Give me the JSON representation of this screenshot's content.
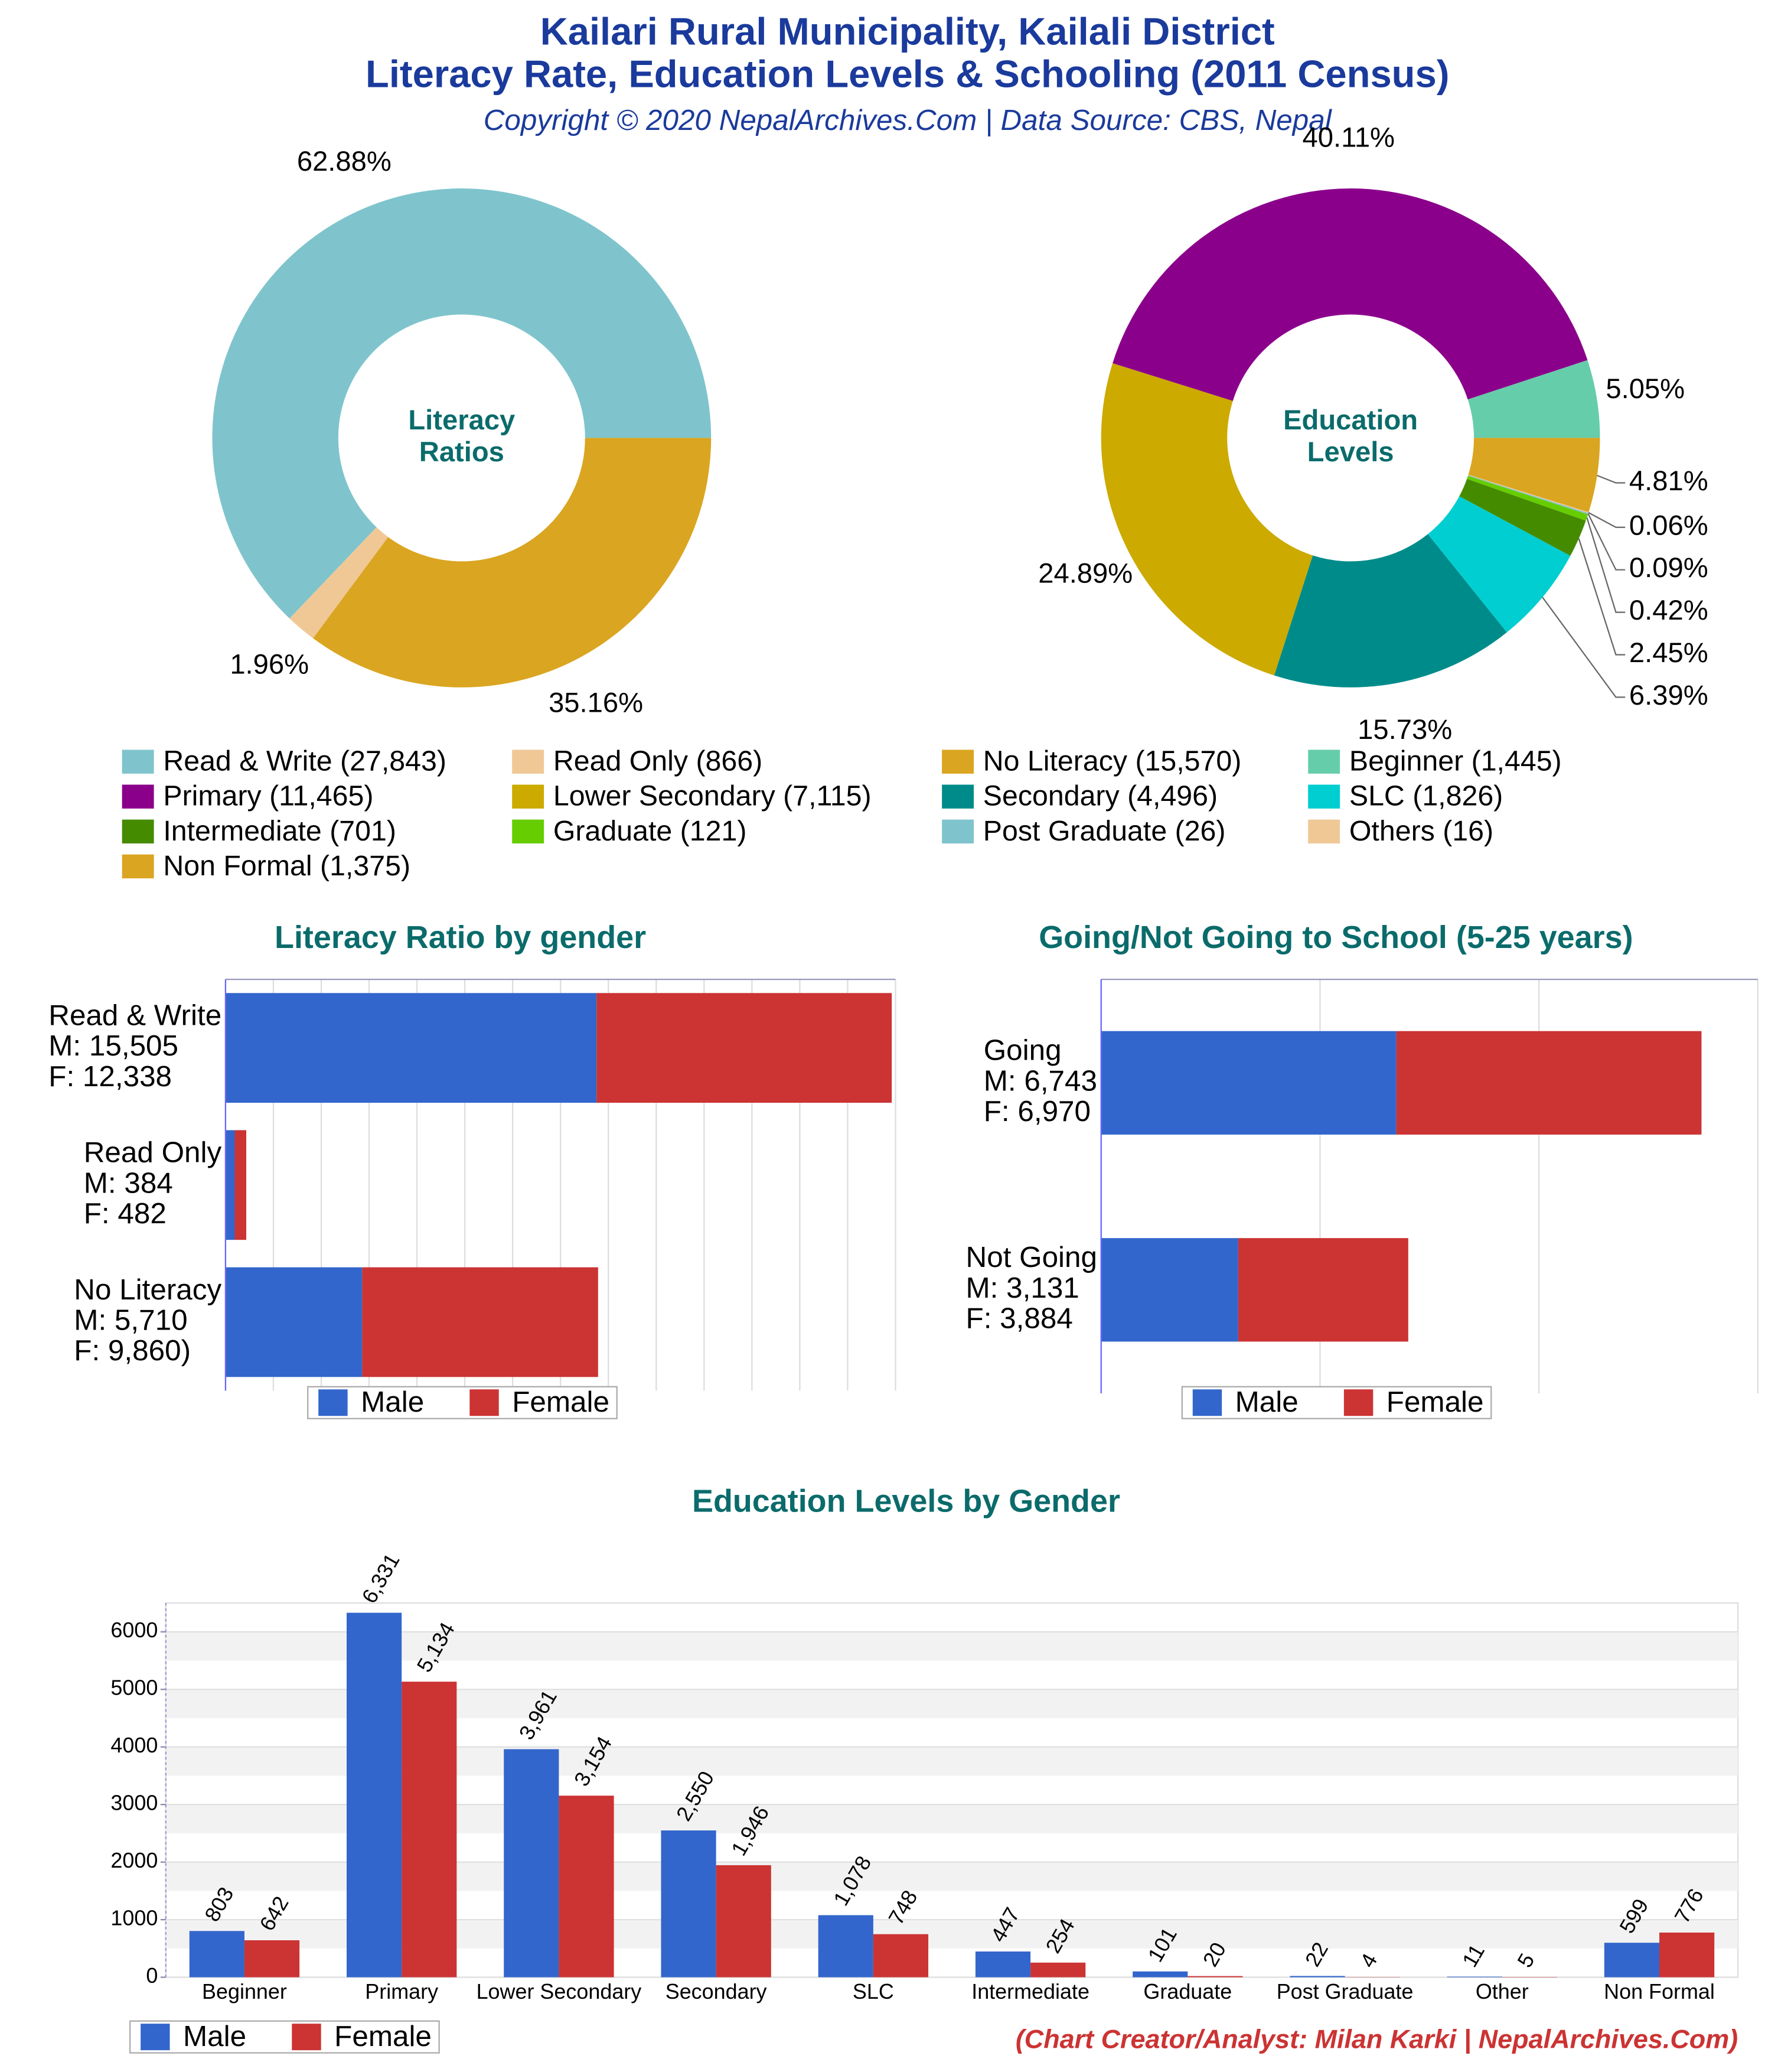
{
  "header": {
    "title_lines": [
      "Kailari Rural Municipality, Kailali District",
      "Literacy Rate, Education Levels & Schooling (2011 Census)"
    ],
    "subtitle": "Copyright © 2020 NepalArchives.Com | Data Source: CBS, Nepal"
  },
  "footer": "(Chart Creator/Analyst: Milan Karki | NepalArchives.Com)",
  "chart_data": [
    {
      "type": "pie",
      "donut": true,
      "center_label": [
        "Literacy",
        "Ratios"
      ],
      "start_angle": 0,
      "direction": "counterclockwise",
      "categories": [
        "Read & Write (27,843)",
        "Read Only (866)",
        "No Literacy (15,570)"
      ],
      "values": [
        62.88,
        1.96,
        35.16
      ],
      "value_labels": [
        "62.88%",
        "1.96%",
        "35.16%"
      ],
      "colors": [
        "#7fc4cc",
        "#f0c896",
        "#daa520"
      ]
    },
    {
      "type": "pie",
      "donut": true,
      "center_label": [
        "Education",
        "Levels"
      ],
      "start_angle": 0,
      "direction": "counterclockwise",
      "categories": [
        "Beginner (1,445)",
        "Primary (11,465)",
        "Lower Secondary (7,115)",
        "Secondary (4,496)",
        "SLC (1,826)",
        "Intermediate (701)",
        "Graduate (121)",
        "Post Graduate (26)",
        "Others (16)",
        "Non Formal (1,375)"
      ],
      "values": [
        5.05,
        40.11,
        24.89,
        15.73,
        6.39,
        2.45,
        0.42,
        0.09,
        0.06,
        4.81
      ],
      "value_labels": [
        "5.05%",
        "40.11%",
        "24.89%",
        "15.73%",
        "6.39%",
        "2.45%",
        "0.42%",
        "0.09%",
        "0.06%",
        "4.81%"
      ],
      "colors": [
        "#66cdaa",
        "#8b008b",
        "#ccaa00",
        "#008b8b",
        "#00ced1",
        "#458b00",
        "#66cd00",
        "#7fc4cc",
        "#f0c896",
        "#daa520"
      ]
    },
    {
      "type": "hbar",
      "stacked": true,
      "title": "Literacy Ratio by gender",
      "categories": [
        [
          "Read & Write",
          "M: 15,505",
          "F: 12,338"
        ],
        [
          "Read Only",
          "M: 384",
          "F: 482"
        ],
        [
          "No Literacy",
          "M: 5,710",
          "F: 9,860)"
        ]
      ],
      "series": [
        {
          "name": "Male",
          "color": "#3366cc",
          "values": [
            15505,
            384,
            5710
          ]
        },
        {
          "name": "Female",
          "color": "#cc3333",
          "values": [
            12338,
            482,
            9860
          ]
        }
      ],
      "xlim": [
        0,
        28000
      ],
      "xticks": [
        0,
        2000,
        4000,
        6000,
        8000,
        10000,
        12000,
        14000,
        16000,
        18000,
        20000,
        22000,
        24000,
        26000,
        28000
      ],
      "tick_labels": false,
      "grid": true,
      "legend": "bottom"
    },
    {
      "type": "hbar",
      "stacked": true,
      "title": "Going/Not Going to School (5-25 years)",
      "categories": [
        [
          "Going",
          "M: 6,743",
          "F: 6,970"
        ],
        [
          "Not Going",
          "M: 3,131",
          "F: 3,884"
        ]
      ],
      "series": [
        {
          "name": "Male",
          "color": "#3366cc",
          "values": [
            6743,
            3131
          ]
        },
        {
          "name": "Female",
          "color": "#cc3333",
          "values": [
            6970,
            3884
          ]
        }
      ],
      "xlim": [
        0,
        15000
      ],
      "xticks": [
        0,
        5000,
        10000,
        15000
      ],
      "tick_labels": false,
      "grid": true,
      "legend": "bottom"
    },
    {
      "type": "bar",
      "title": "Education Levels by Gender",
      "categories": [
        "Beginner",
        "Primary",
        "Lower Secondary",
        "Secondary",
        "SLC",
        "Intermediate",
        "Graduate",
        "Post Graduate",
        "Other",
        "Non Formal"
      ],
      "series": [
        {
          "name": "Male",
          "color": "#3366cc",
          "values": [
            803,
            6331,
            3961,
            2550,
            1078,
            447,
            101,
            22,
            11,
            599
          ],
          "value_labels": [
            "803",
            "6,331",
            "3,961",
            "2,550",
            "1,078",
            "447",
            "101",
            "22",
            "11",
            "599"
          ]
        },
        {
          "name": "Female",
          "color": "#cc3333",
          "values": [
            642,
            5134,
            3154,
            1946,
            748,
            254,
            20,
            4,
            5,
            776
          ],
          "value_labels": [
            "642",
            "5,134",
            "3,154",
            "1,946",
            "748",
            "254",
            "20",
            "4",
            "5",
            "776"
          ]
        }
      ],
      "ylim": [
        0,
        6500
      ],
      "yticks": [
        0,
        1000,
        2000,
        3000,
        4000,
        5000,
        6000
      ],
      "grid": true,
      "legend": "bottom-left"
    }
  ]
}
